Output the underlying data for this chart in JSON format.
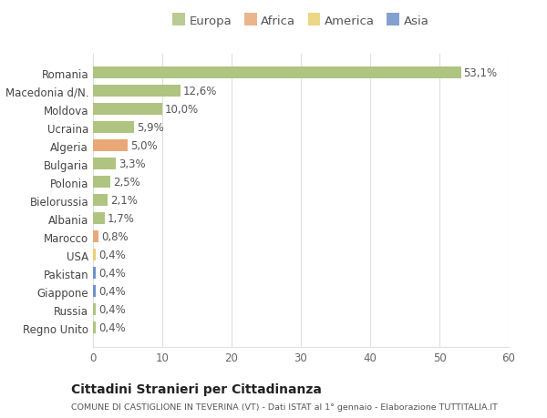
{
  "countries": [
    "Romania",
    "Macedonia d/N.",
    "Moldova",
    "Ucraina",
    "Algeria",
    "Bulgaria",
    "Polonia",
    "Bielorussia",
    "Albania",
    "Marocco",
    "USA",
    "Pakistan",
    "Giappone",
    "Russia",
    "Regno Unito"
  ],
  "values": [
    53.1,
    12.6,
    10.0,
    5.9,
    5.0,
    3.3,
    2.5,
    2.1,
    1.7,
    0.8,
    0.4,
    0.4,
    0.4,
    0.4,
    0.4
  ],
  "labels": [
    "53,1%",
    "12,6%",
    "10,0%",
    "5,9%",
    "5,0%",
    "3,3%",
    "2,5%",
    "2,1%",
    "1,7%",
    "0,8%",
    "0,4%",
    "0,4%",
    "0,4%",
    "0,4%",
    "0,4%"
  ],
  "continents": [
    "Europa",
    "Europa",
    "Europa",
    "Europa",
    "Africa",
    "Europa",
    "Europa",
    "Europa",
    "Europa",
    "Africa",
    "America",
    "Asia",
    "Asia",
    "Europa",
    "Europa"
  ],
  "colors": {
    "Europa": "#aec480",
    "Africa": "#e8a878",
    "America": "#e8d070",
    "Asia": "#7090c8"
  },
  "legend_order": [
    "Europa",
    "Africa",
    "America",
    "Asia"
  ],
  "xlim": [
    0,
    60
  ],
  "xticks": [
    0,
    10,
    20,
    30,
    40,
    50,
    60
  ],
  "background_color": "#ffffff",
  "bar_background": "#ffffff",
  "title": "Cittadini Stranieri per Cittadinanza",
  "subtitle": "COMUNE DI CASTIGLIONE IN TEVERINA (VT) - Dati ISTAT al 1° gennaio - Elaborazione TUTTITALIA.IT",
  "grid_color": "#e0e0e0",
  "label_fontsize": 8.5,
  "tick_fontsize": 8.5,
  "bar_height": 0.65
}
